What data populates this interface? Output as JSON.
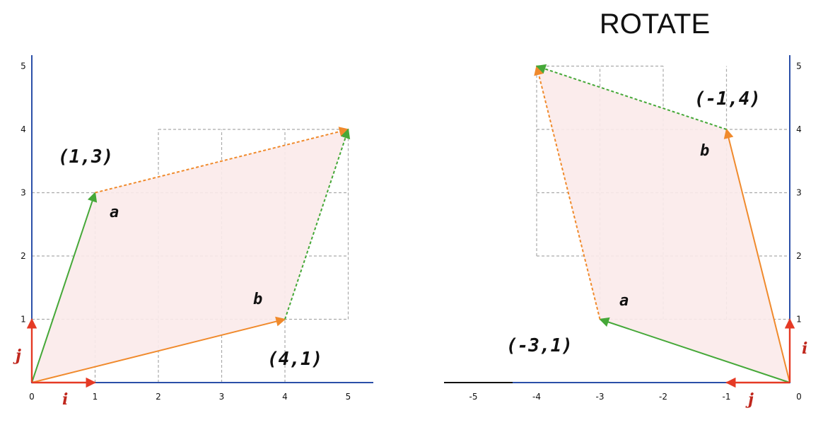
{
  "title": "ROTATE",
  "colors": {
    "axis": "#2b4fa8",
    "grid": "#aaaaaa",
    "fill": "#fbeaea",
    "red": "#e53a25",
    "orange": "#f08a2c",
    "green": "#45a838",
    "basis_label": "#c0281e"
  },
  "left_panel": {
    "x_ticks": [
      "0",
      "1",
      "2",
      "3",
      "4",
      "5"
    ],
    "y_ticks": [
      "1",
      "2",
      "3",
      "4",
      "5"
    ],
    "labels": {
      "a_point": "(1,3)",
      "b_point": "(4,1)",
      "a": "a",
      "b": "b",
      "i": "i",
      "j": "j"
    },
    "vectors": {
      "i": [
        1,
        0
      ],
      "j": [
        0,
        1
      ],
      "a": [
        1,
        3
      ],
      "b": [
        4,
        1
      ],
      "sum": [
        5,
        4
      ]
    }
  },
  "right_panel": {
    "x_ticks": [
      "-5",
      "-4",
      "-3",
      "-2",
      "-1",
      "0"
    ],
    "y_ticks": [
      "1",
      "2",
      "3",
      "4",
      "5"
    ],
    "labels": {
      "a_point": "(-3,1)",
      "b_point": "(-1,4)",
      "a": "a",
      "b": "b",
      "i": "i",
      "j": "j"
    },
    "vectors": {
      "i": [
        0,
        1
      ],
      "j": [
        -1,
        0
      ],
      "a": [
        -3,
        1
      ],
      "b": [
        -1,
        4
      ],
      "sum": [
        -4,
        5
      ]
    }
  }
}
